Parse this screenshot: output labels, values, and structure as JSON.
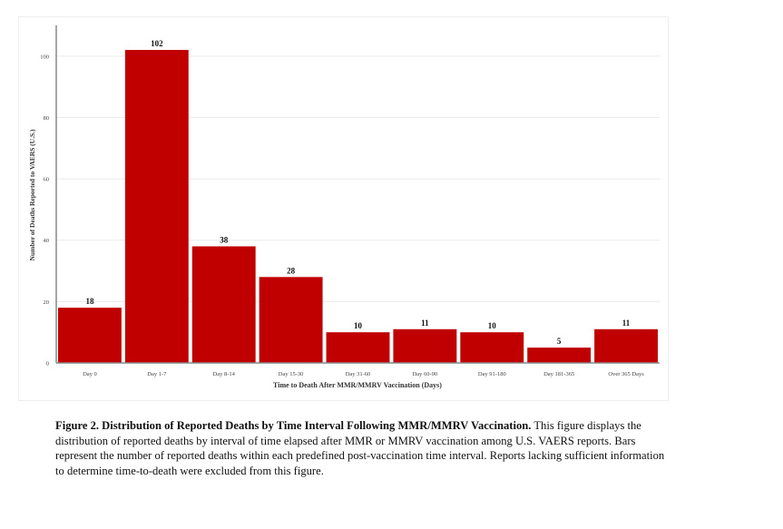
{
  "chart_data": {
    "type": "bar",
    "categories": [
      "Day 0",
      "Day 1-7",
      "Day 8-14",
      "Day 15-30",
      "Day 31-60",
      "Day 60-90",
      "Day 91-180",
      "Day 181-365",
      "Over 365 Days"
    ],
    "values": [
      18,
      102,
      38,
      28,
      10,
      11,
      10,
      5,
      11
    ],
    "xlabel": "Time to Death After MMR/MMRV Vaccination (Days)",
    "ylabel": "Number of Deaths Reported to VAERS (U.S.)",
    "ylim": [
      0,
      110
    ],
    "yticks": [
      0,
      20,
      40,
      60,
      80,
      100
    ],
    "grid": true,
    "bar_color": "#c00000"
  },
  "caption": {
    "title": "Figure 2. Distribution of Reported Deaths by Time Interval Following MMR/MMRV Vaccination.",
    "body": " This figure displays the distribution of reported deaths by interval of time elapsed after MMR or MMRV vaccination among U.S. VAERS reports. Bars represent the number of reported deaths within each predefined post-vaccination time interval. Reports lacking sufficient information to determine time-to-death were excluded from this figure."
  }
}
